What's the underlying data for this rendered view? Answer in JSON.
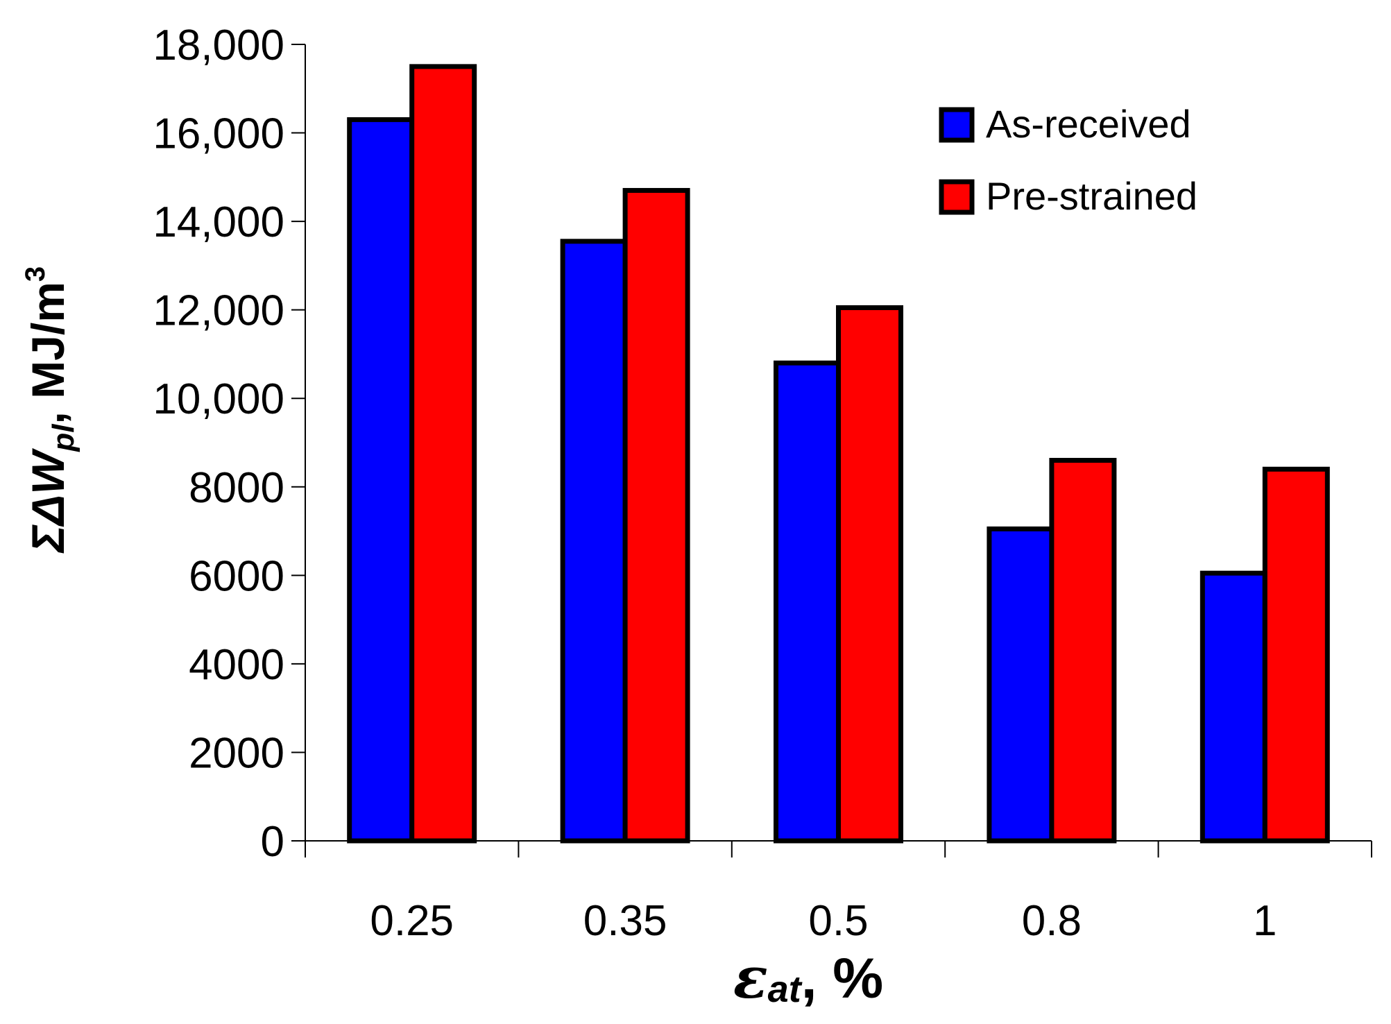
{
  "chart_data": {
    "type": "bar",
    "categories": [
      "0.25",
      "0.35",
      "0.5",
      "0.8",
      "1"
    ],
    "series": [
      {
        "name": "As-received",
        "color": "#0000ff",
        "values": [
          16300,
          13550,
          10800,
          7050,
          6050
        ]
      },
      {
        "name": "Pre-strained",
        "color": "#ff0000",
        "values": [
          17500,
          14700,
          12050,
          8600,
          8400
        ]
      }
    ],
    "ylim": [
      0,
      18000
    ],
    "yticks": [
      0,
      2000,
      4000,
      6000,
      8000,
      10000,
      12000,
      14000,
      16000,
      18000
    ],
    "ytick_labels": [
      "0",
      "2000",
      "4000",
      "6000",
      "8000",
      "10,000",
      "12,000",
      "14,000",
      "16,000",
      "18,000"
    ],
    "ylabel": {
      "main": "ΣΔW",
      "subscript": "pl",
      "rest": ", MJ/m",
      "superscript": "3"
    },
    "xlabel": {
      "symbol": "ε",
      "subscript": "at",
      "rest": ", %"
    },
    "legend_position": "top-right",
    "grid": false
  }
}
